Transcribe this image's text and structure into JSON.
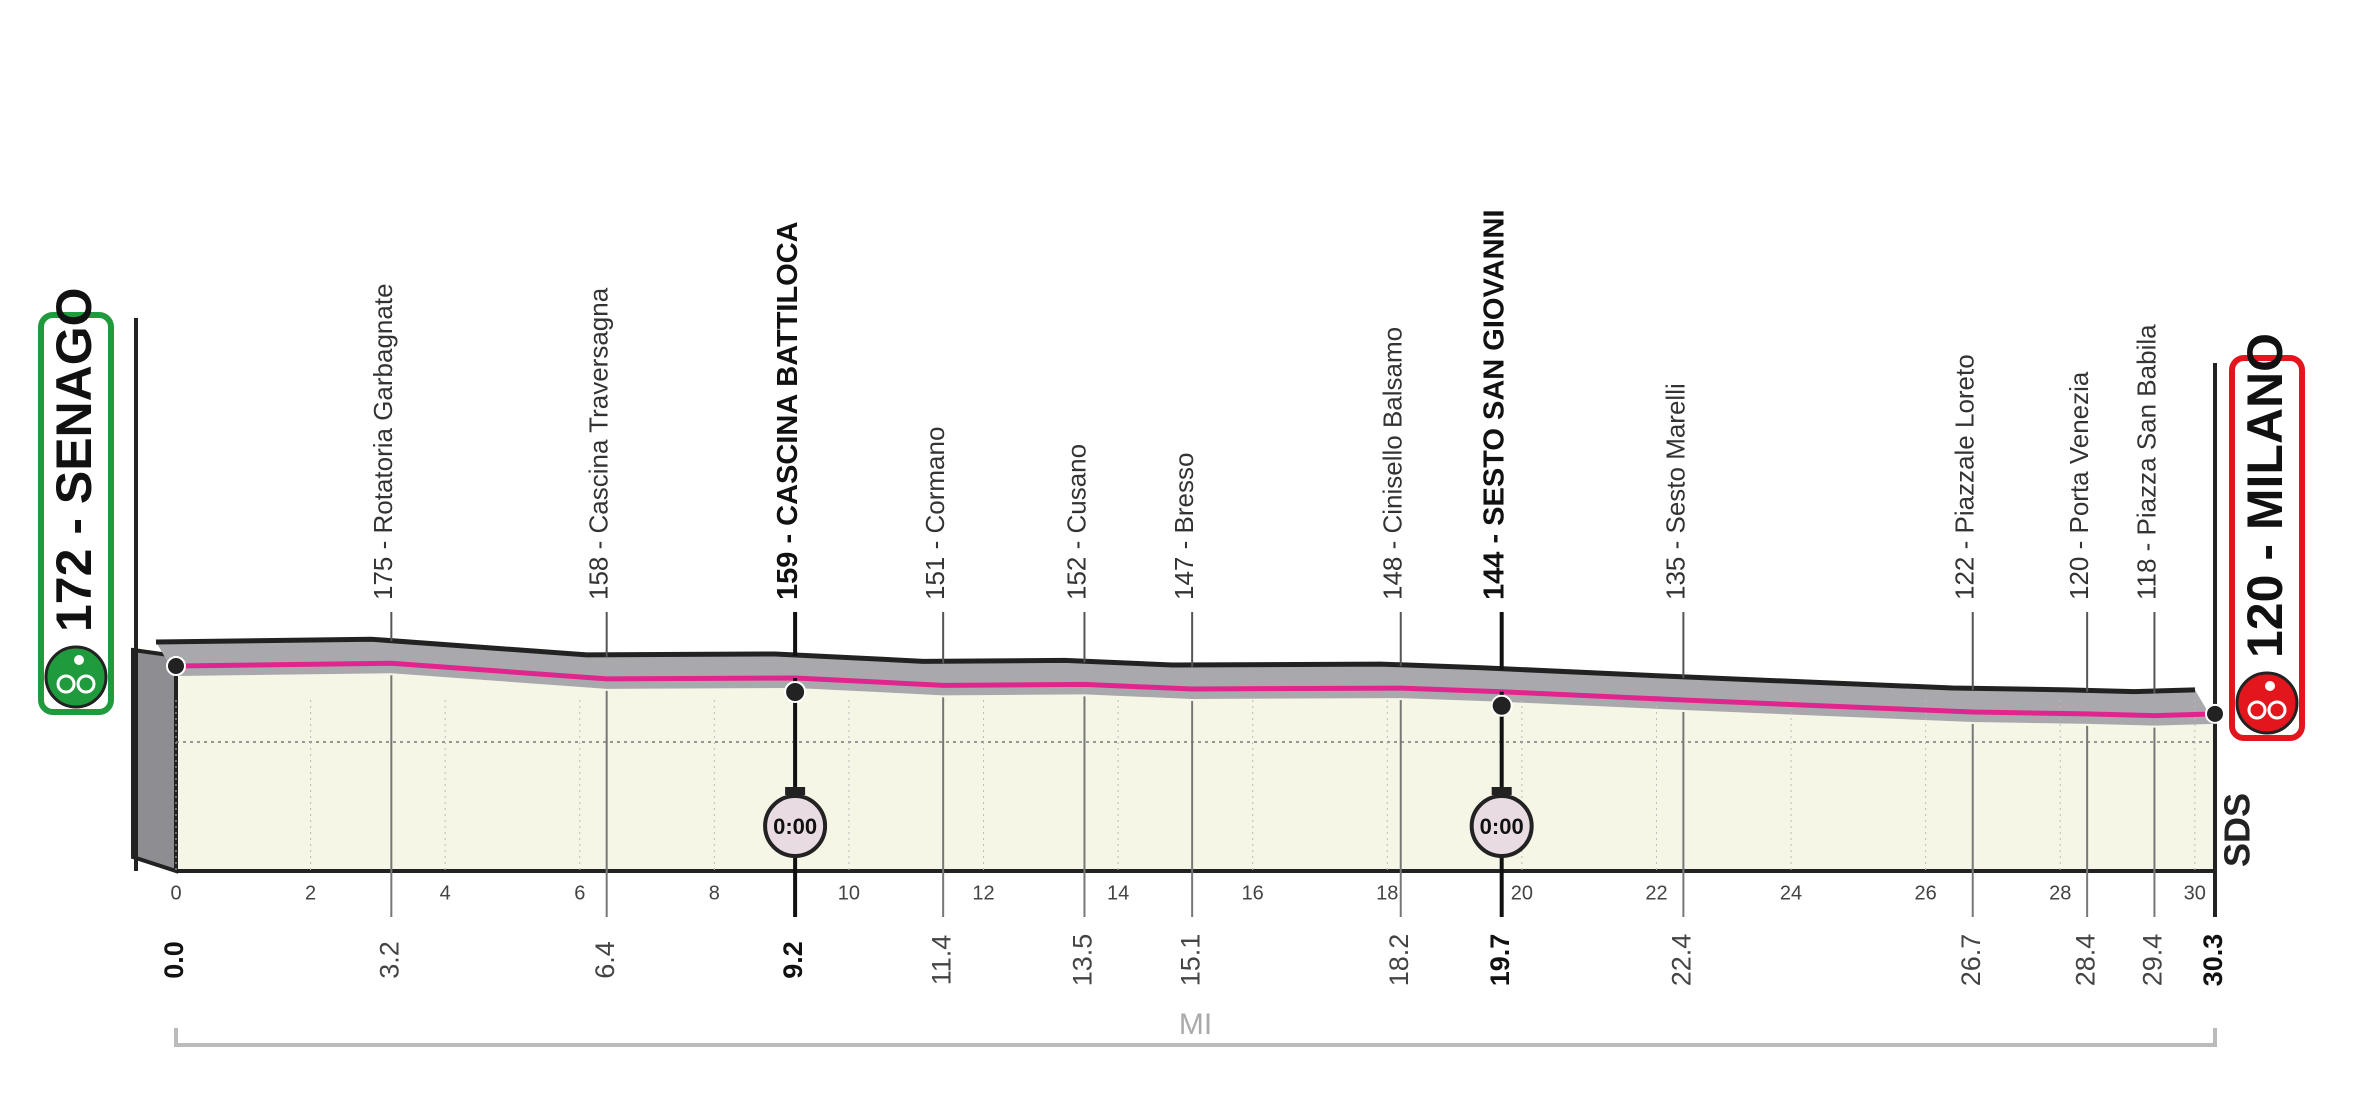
{
  "chart_data": {
    "type": "profile",
    "xlim": [
      0,
      30.3
    ],
    "xticks": [
      0,
      2,
      4,
      6,
      8,
      10,
      12,
      14,
      16,
      18,
      20,
      22,
      24,
      26,
      28,
      30
    ],
    "waypoints": [
      {
        "label": "172 - SENAGO",
        "altitude": 172,
        "km": {
          "value": 0,
          "label": "0.0"
        },
        "role": "start",
        "bold": true
      },
      {
        "label": "175 - Rotatoria Garbagnate",
        "altitude": 175,
        "km": 3.2
      },
      {
        "label": "158 - Cascina Traversagna",
        "altitude": 158,
        "km": 6.4
      },
      {
        "label": "159 - CASCINA BATTILOCA",
        "altitude": 159,
        "km": 9.2,
        "bold": true
      },
      {
        "label": "151 - Cormano",
        "altitude": 151,
        "km": 11.4
      },
      {
        "label": "152 - Cusano",
        "altitude": 152,
        "km": 13.5
      },
      {
        "label": "147 - Bresso",
        "altitude": 147,
        "km": 15.1
      },
      {
        "label": "148 - Cinisello Balsamo",
        "altitude": 148,
        "km": 18.2
      },
      {
        "label": "144 - SESTO SAN GIOVANNI",
        "altitude": 144,
        "km": 19.7,
        "bold": true
      },
      {
        "label": "135 - Sesto Marelli",
        "altitude": 135,
        "km": 22.4
      },
      {
        "label": "122 - Piazzale Loreto",
        "altitude": 122,
        "km": 26.7
      },
      {
        "label": "120 - Porta Venezia",
        "altitude": 120,
        "km": 28.4
      },
      {
        "label": "118 - Piazza San Babila",
        "altitude": 118,
        "km": 29.4
      },
      {
        "label": "120 - MILANO",
        "altitude": 120,
        "km": 30.3,
        "role": "finish",
        "bold": true
      }
    ],
    "intermediate_times": [
      {
        "km": 9.2,
        "label": "0:00"
      },
      {
        "km": 19.7,
        "label": "0:00"
      }
    ],
    "distance_unit": "MI",
    "logo": "SDS",
    "colors": {
      "start": "#1f9a3d",
      "finish": "#e2161c",
      "route_line": "#e0258f",
      "road": "#a9a9ad",
      "ground": "#f5f6e6"
    }
  }
}
